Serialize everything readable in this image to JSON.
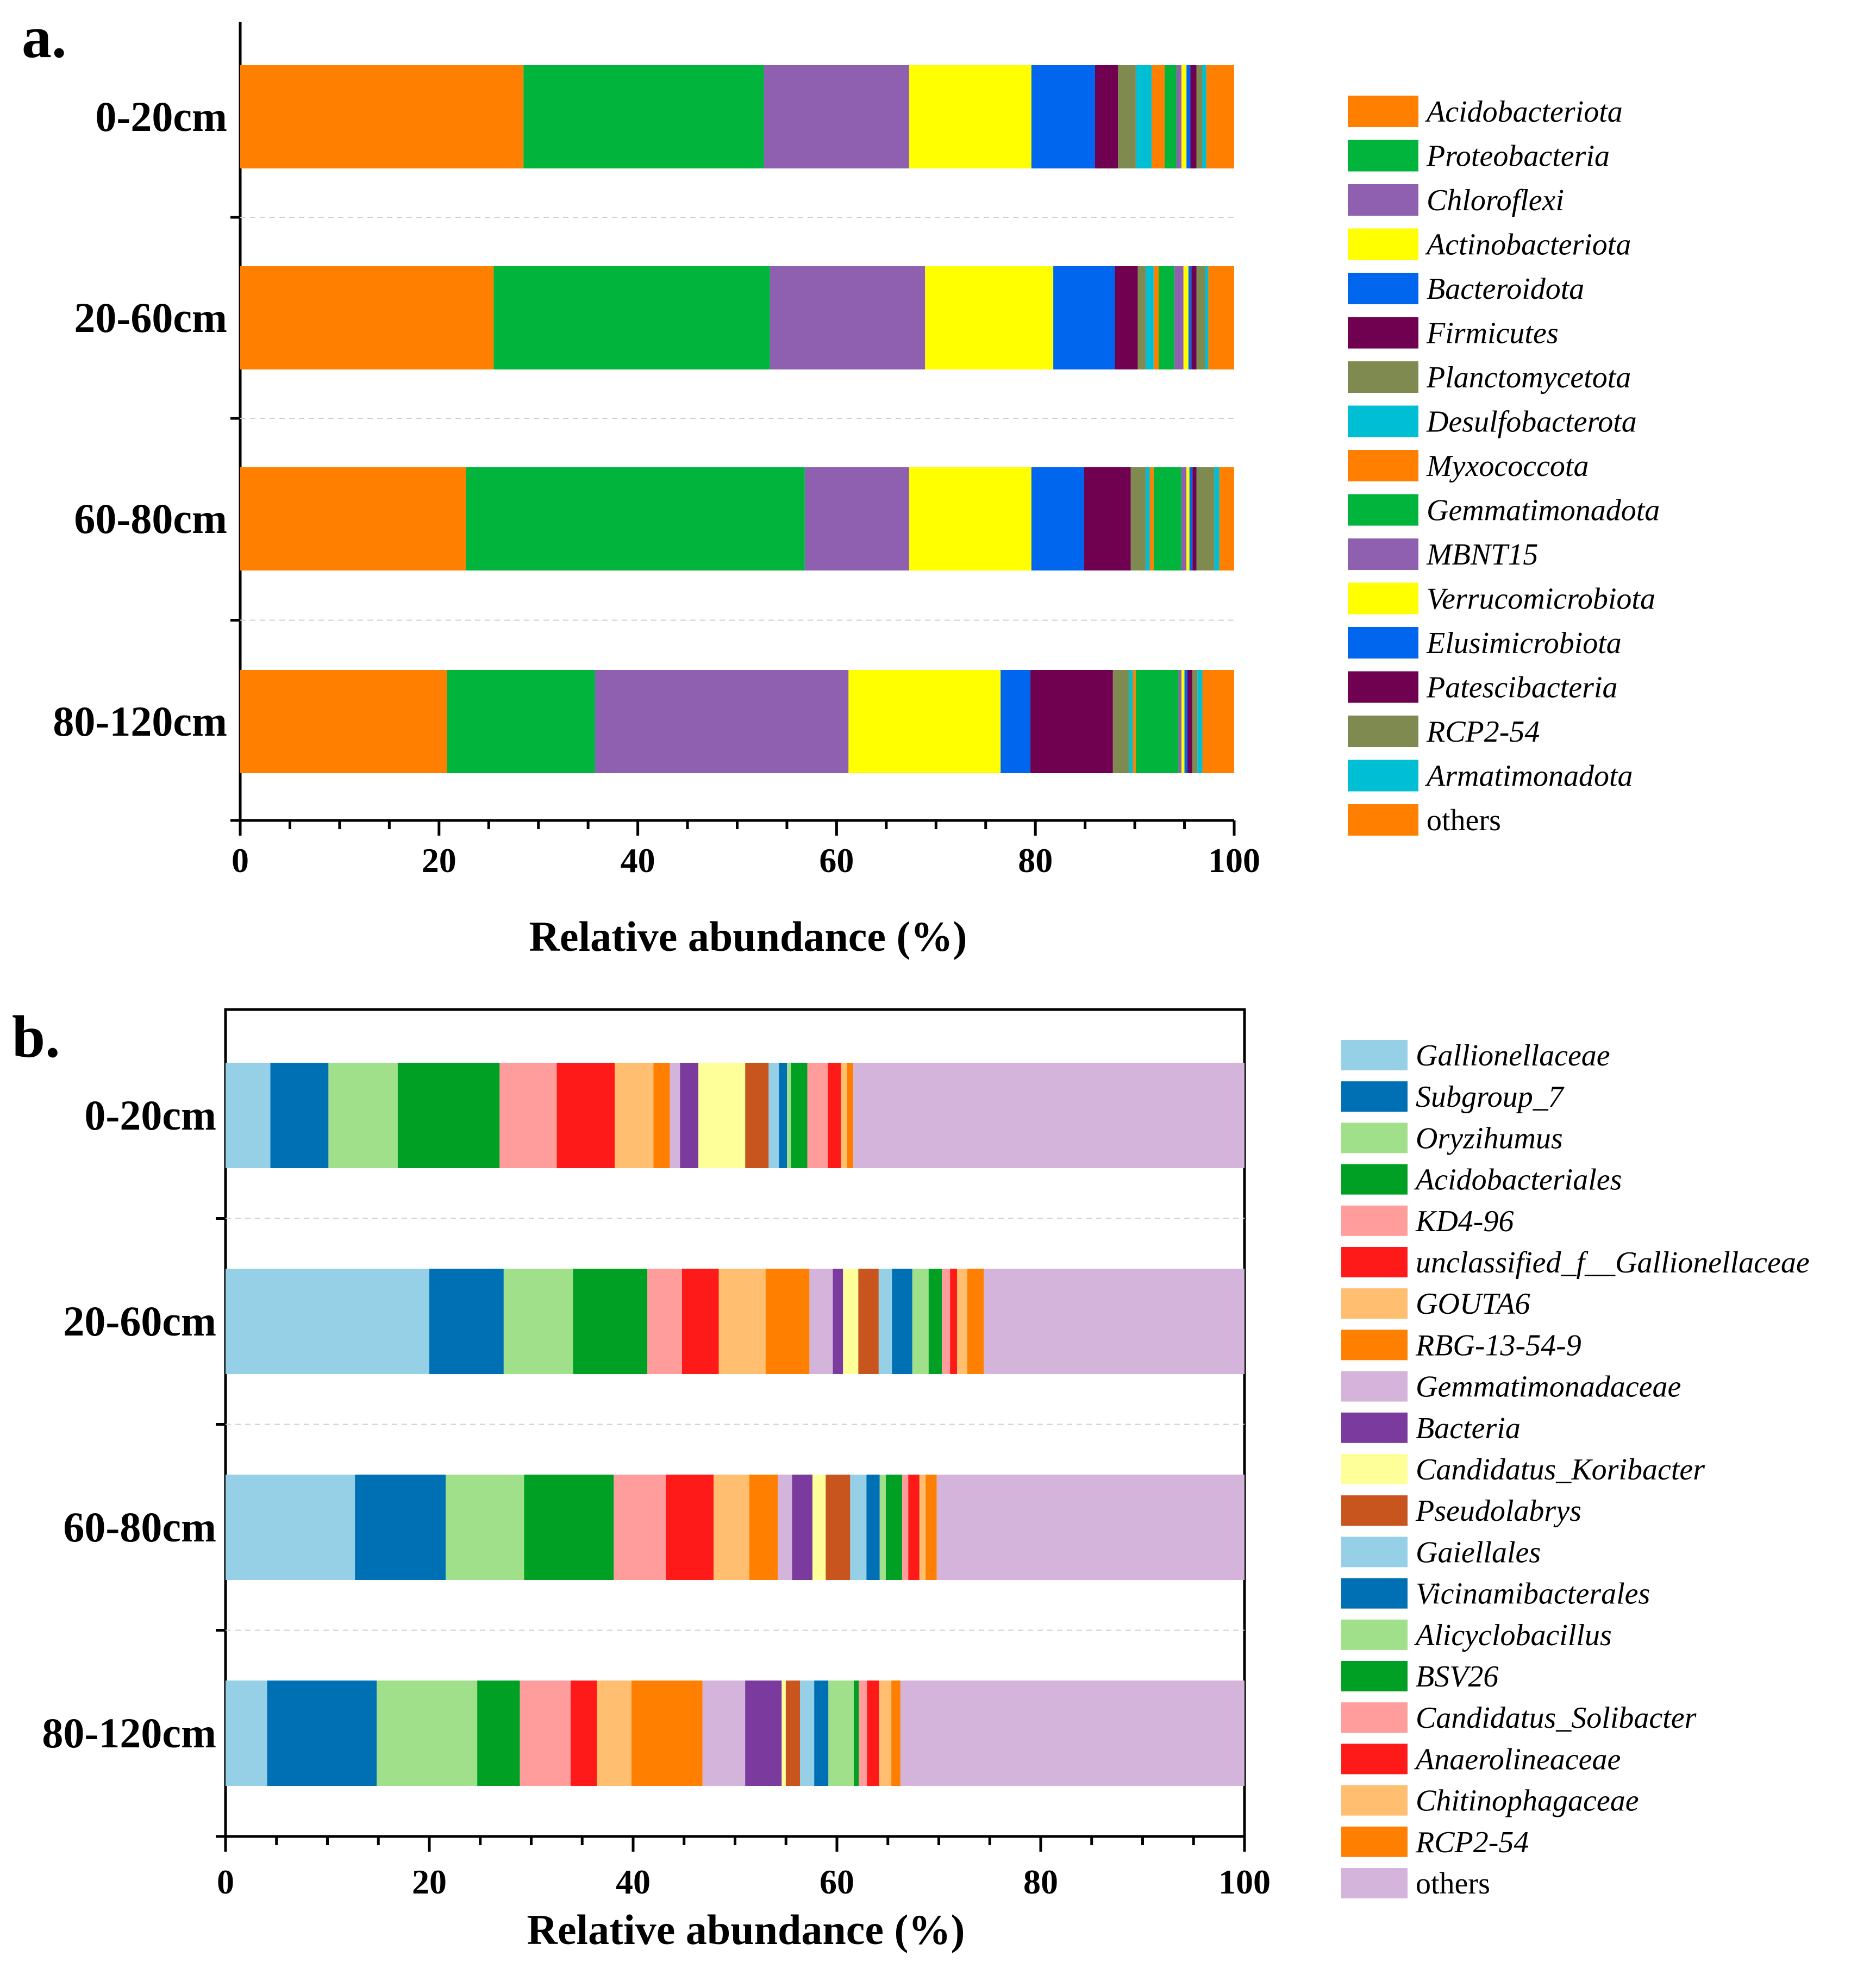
{
  "chart_data": [
    {
      "type": "stacked-bar-horizontal",
      "panel": "a.",
      "xlabel": "Relative abundance (%)",
      "xlim": [
        0,
        100
      ],
      "xticks": [
        "0",
        "20",
        "40",
        "60",
        "80",
        "100"
      ],
      "categories": [
        "0-20cm",
        "20-60cm",
        "60-80cm",
        "80-120cm"
      ],
      "series": [
        {
          "name": "Acidobacteriota",
          "color": "#FF8000",
          "values": [
            28.5,
            25.5,
            22.7,
            20.8
          ]
        },
        {
          "name": "Proteobacteria",
          "color": "#00B43C",
          "values": [
            24.2,
            27.8,
            34.1,
            14.9
          ]
        },
        {
          "name": "Chloroflexi",
          "color": "#8F60B0",
          "values": [
            14.6,
            15.6,
            10.5,
            25.5
          ]
        },
        {
          "name": "Actinobacteriota",
          "color": "#FFFF00",
          "values": [
            12.3,
            12.9,
            12.3,
            15.3
          ]
        },
        {
          "name": "Bacteroidota",
          "color": "#0066EE",
          "values": [
            6.4,
            6.2,
            5.3,
            3.0
          ]
        },
        {
          "name": "Firmicutes",
          "color": "#700050",
          "values": [
            2.3,
            2.3,
            4.7,
            8.3
          ]
        },
        {
          "name": "Planctomycetota",
          "color": "#7F8A50",
          "values": [
            1.8,
            0.8,
            1.5,
            1.6
          ]
        },
        {
          "name": "Desulfobacterota",
          "color": "#00BED3",
          "values": [
            1.6,
            0.8,
            0.4,
            0.4
          ]
        },
        {
          "name": "Myxococcota",
          "color": "#FF8000",
          "values": [
            1.3,
            0.5,
            0.4,
            0.3
          ]
        },
        {
          "name": "Gemmatimonadota",
          "color": "#00B43C",
          "values": [
            1.2,
            1.6,
            2.8,
            4.3
          ]
        },
        {
          "name": "MBNT15",
          "color": "#8F60B0",
          "values": [
            0.5,
            0.9,
            0.5,
            0.3
          ]
        },
        {
          "name": "Verrucomicrobiota",
          "color": "#FFFF00",
          "values": [
            0.5,
            0.5,
            0.3,
            0.3
          ]
        },
        {
          "name": "Elusimicrobiota",
          "color": "#0066EE",
          "values": [
            0.4,
            0.3,
            0.3,
            0.3
          ]
        },
        {
          "name": "Patescibacteria",
          "color": "#700050",
          "values": [
            0.6,
            0.5,
            0.4,
            0.5
          ]
        },
        {
          "name": "RCP2-54",
          "color": "#7F8A50",
          "values": [
            0.6,
            0.9,
            1.8,
            0.5
          ]
        },
        {
          "name": "Armatimonadota",
          "color": "#00BED3",
          "values": [
            0.4,
            0.3,
            0.5,
            0.5
          ]
        },
        {
          "name": "others",
          "color": "#FF8000",
          "values": [
            2.8,
            2.6,
            1.5,
            3.2
          ]
        }
      ]
    },
    {
      "type": "stacked-bar-horizontal",
      "panel": "b.",
      "xlabel": "Relative abundance (%)",
      "xlim": [
        0,
        100
      ],
      "xticks": [
        "0",
        "20",
        "40",
        "60",
        "80",
        "100"
      ],
      "categories": [
        "0-20cm",
        "20-60cm",
        "60-80cm",
        "80-120cm"
      ],
      "series": [
        {
          "name": "Gallionellaceae",
          "color": "#96D0E6",
          "values": [
            4.4,
            20.0,
            12.7,
            4.1
          ]
        },
        {
          "name": "Subgroup_7",
          "color": "#0070B4",
          "values": [
            5.7,
            7.3,
            8.9,
            10.8
          ]
        },
        {
          "name": "Oryzihumus",
          "color": "#A0E08A",
          "values": [
            6.8,
            6.8,
            7.7,
            9.9
          ]
        },
        {
          "name": "Acidobacteriales",
          "color": "#00A024",
          "values": [
            10.0,
            7.3,
            8.8,
            4.2
          ]
        },
        {
          "name": "KD4-96",
          "color": "#FF9C9C",
          "values": [
            5.6,
            3.4,
            5.1,
            5.0
          ]
        },
        {
          "name": "unclassified_f__Gallionellaceae",
          "color": "#FF1A1A",
          "values": [
            5.7,
            3.6,
            4.7,
            2.6
          ]
        },
        {
          "name": "GOUTA6",
          "color": "#FFBE70",
          "values": [
            3.8,
            4.6,
            3.5,
            3.4
          ]
        },
        {
          "name": "RBG-13-54-9",
          "color": "#FF8000",
          "values": [
            1.6,
            4.3,
            2.8,
            7.0
          ]
        },
        {
          "name": "Gemmatimonadaceae",
          "color": "#D4B4DA",
          "values": [
            1.0,
            2.3,
            1.4,
            4.2
          ]
        },
        {
          "name": "Bacteria",
          "color": "#7A3A9E",
          "values": [
            1.8,
            1.0,
            2.0,
            3.6
          ]
        },
        {
          "name": "Candidatus_Koribacter",
          "color": "#FFFF9A",
          "values": [
            4.6,
            1.5,
            1.3,
            0.4
          ]
        },
        {
          "name": "Pseudolabrys",
          "color": "#C8541E",
          "values": [
            2.3,
            2.0,
            2.4,
            1.4
          ]
        },
        {
          "name": "Gaiellales",
          "color": "#96D0E6",
          "values": [
            1.0,
            1.3,
            1.6,
            1.4
          ]
        },
        {
          "name": "Vicinamibacterales",
          "color": "#0070B4",
          "values": [
            0.8,
            2.0,
            1.3,
            1.4
          ]
        },
        {
          "name": "Alicyclobacillus",
          "color": "#A0E08A",
          "values": [
            0.4,
            1.6,
            0.6,
            2.5
          ]
        },
        {
          "name": "BSV26",
          "color": "#00A024",
          "values": [
            1.6,
            1.3,
            1.6,
            0.5
          ]
        },
        {
          "name": "Candidatus_Solibacter",
          "color": "#FF9C9C",
          "values": [
            2.0,
            0.8,
            0.6,
            0.8
          ]
        },
        {
          "name": "Anaerolineaceae",
          "color": "#FF1A1A",
          "values": [
            1.3,
            0.7,
            1.1,
            1.2
          ]
        },
        {
          "name": "Chitinophagaceae",
          "color": "#FFBE70",
          "values": [
            0.6,
            1.0,
            0.6,
            1.2
          ]
        },
        {
          "name": "RCP2-54",
          "color": "#FF8000",
          "values": [
            0.6,
            1.6,
            1.1,
            0.9
          ]
        },
        {
          "name": "others",
          "color": "#D4B4DA",
          "values": [
            38.4,
            25.6,
            30.2,
            33.9
          ]
        }
      ]
    }
  ]
}
